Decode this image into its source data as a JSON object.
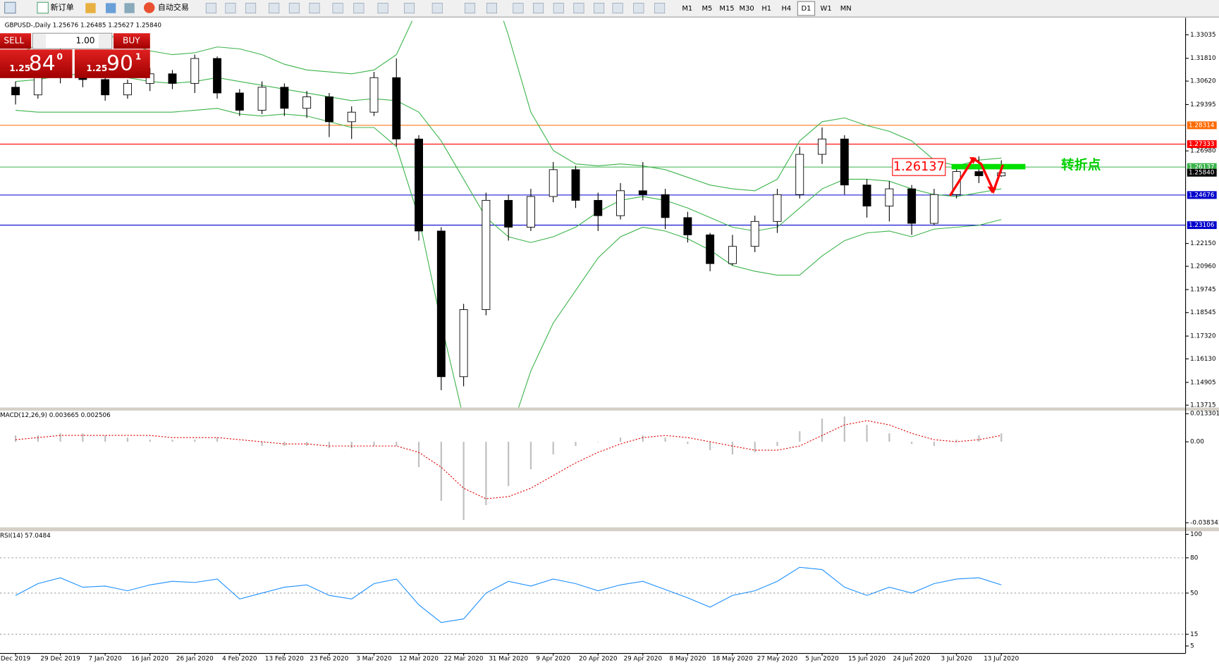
{
  "toolbar": {
    "new_order": "新订单",
    "auto_trading": "自动交易",
    "timeframes": [
      "M1",
      "M5",
      "M15",
      "M30",
      "H1",
      "H4",
      "D1",
      "W1",
      "MN"
    ],
    "active_timeframe": "D1"
  },
  "trade_panel": {
    "sell": "SELL",
    "buy": "BUY",
    "lots": "1.00",
    "bid_prefix": "1.25",
    "bid_big": "84",
    "bid_small": "0",
    "ask_prefix": "1.25",
    "ask_big": "90",
    "ask_small": "1"
  },
  "chart_data": [
    {
      "type": "candlestick",
      "title": "GBPUSD-,Daily 1.25676 1.26485 1.25627 1.25840",
      "categories": [
        "Dec 2019",
        null,
        "29 Dec 2019",
        null,
        "7 Jan 2020",
        null,
        "16 Jan 2020",
        null,
        "26 Jan 2020",
        null,
        "4 Feb 2020",
        null,
        "13 Feb 2020",
        null,
        "23 Feb 2020",
        null,
        "3 Mar 2020",
        null,
        "12 Mar 2020",
        null,
        "22 Mar 2020",
        null,
        "31 Mar 2020",
        null,
        "9 Apr 2020",
        null,
        "20 Apr 2020",
        null,
        "29 Apr 2020",
        null,
        "8 May 2020",
        null,
        "18 May 2020",
        null,
        "27 May 2020",
        null,
        "5 Jun 2020",
        null,
        "15 Jun 2020",
        null,
        "24 Jun 2020",
        null,
        "3 Jul 2020",
        null,
        "13 Jul 2020"
      ],
      "open": [
        1.303,
        1.299,
        1.309,
        1.318,
        1.307,
        1.299,
        1.305,
        1.31,
        1.305,
        1.318,
        1.3,
        1.291,
        1.303,
        1.292,
        1.298,
        1.285,
        1.29,
        1.308,
        1.276,
        1.228,
        1.152,
        1.187,
        1.244,
        1.23,
        1.246,
        1.26,
        1.244,
        1.236,
        1.249,
        1.247,
        1.235,
        1.226,
        1.211,
        1.22,
        1.233,
        1.247,
        1.268,
        1.276,
        1.252,
        1.241,
        1.25,
        1.232,
        1.247,
        1.259,
        1.25676
      ],
      "high": [
        1.306,
        1.312,
        1.323,
        1.32,
        1.309,
        1.307,
        1.313,
        1.312,
        1.32,
        1.319,
        1.302,
        1.306,
        1.305,
        1.301,
        1.3,
        1.293,
        1.311,
        1.318,
        1.278,
        1.23,
        1.19,
        1.248,
        1.247,
        1.25,
        1.264,
        1.262,
        1.248,
        1.253,
        1.264,
        1.25,
        1.238,
        1.227,
        1.226,
        1.236,
        1.25,
        1.272,
        1.282,
        1.278,
        1.255,
        1.254,
        1.252,
        1.25,
        1.262,
        1.267,
        1.26485
      ],
      "low": [
        1.294,
        1.297,
        1.305,
        1.303,
        1.296,
        1.297,
        1.301,
        1.302,
        1.3,
        1.297,
        1.288,
        1.289,
        1.288,
        1.287,
        1.277,
        1.276,
        1.288,
        1.272,
        1.223,
        1.145,
        1.147,
        1.184,
        1.223,
        1.228,
        1.243,
        1.24,
        1.228,
        1.234,
        1.244,
        1.229,
        1.222,
        1.207,
        1.21,
        1.217,
        1.227,
        1.245,
        1.263,
        1.247,
        1.235,
        1.233,
        1.226,
        1.231,
        1.245,
        1.253,
        1.25627
      ],
      "close": [
        1.299,
        1.309,
        1.318,
        1.307,
        1.299,
        1.305,
        1.31,
        1.305,
        1.318,
        1.3,
        1.291,
        1.303,
        1.292,
        1.298,
        1.285,
        1.29,
        1.308,
        1.276,
        1.228,
        1.152,
        1.187,
        1.244,
        1.23,
        1.246,
        1.26,
        1.244,
        1.236,
        1.249,
        1.247,
        1.235,
        1.226,
        1.211,
        1.22,
        1.233,
        1.247,
        1.268,
        1.276,
        1.252,
        1.241,
        1.25,
        1.232,
        1.247,
        1.259,
        1.2568,
        1.2584
      ],
      "up_color": "#ffffff",
      "down_color": "#000000",
      "bands": {
        "color": "#3cb44b",
        "upper": [
          1.32,
          1.325,
          1.328,
          1.33,
          1.331,
          1.326,
          1.322,
          1.32,
          1.321,
          1.324,
          1.323,
          1.32,
          1.315,
          1.312,
          1.311,
          1.31,
          1.312,
          1.32,
          1.345,
          1.37,
          1.38,
          1.365,
          1.33,
          1.29,
          1.27,
          1.263,
          1.262,
          1.263,
          1.262,
          1.26,
          1.256,
          1.252,
          1.25,
          1.249,
          1.255,
          1.275,
          1.285,
          1.287,
          1.283,
          1.28,
          1.275,
          1.265,
          1.262,
          1.265,
          1.266
        ],
        "middle": [
          1.306,
          1.307,
          1.309,
          1.31,
          1.31,
          1.308,
          1.306,
          1.305,
          1.306,
          1.308,
          1.306,
          1.304,
          1.302,
          1.3,
          1.298,
          1.296,
          1.297,
          1.296,
          1.29,
          1.275,
          1.255,
          1.235,
          1.225,
          1.222,
          1.225,
          1.23,
          1.238,
          1.244,
          1.246,
          1.244,
          1.24,
          1.235,
          1.23,
          1.228,
          1.23,
          1.24,
          1.25,
          1.255,
          1.255,
          1.254,
          1.25,
          1.247,
          1.246,
          1.248,
          1.25
        ],
        "lower": [
          1.291,
          1.29,
          1.29,
          1.29,
          1.29,
          1.29,
          1.29,
          1.29,
          1.291,
          1.292,
          1.289,
          1.288,
          1.289,
          1.288,
          1.285,
          1.282,
          1.282,
          1.272,
          1.235,
          1.18,
          1.13,
          1.105,
          1.12,
          1.155,
          1.18,
          1.197,
          1.214,
          1.225,
          1.23,
          1.228,
          1.224,
          1.218,
          1.21,
          1.207,
          1.205,
          1.205,
          1.215,
          1.223,
          1.227,
          1.228,
          1.225,
          1.229,
          1.23,
          1.231,
          1.234
        ]
      },
      "ylim": [
        1.13594,
        1.33761
      ],
      "yticks": [
        1.33035,
        {
          "value": 1.3181,
          "label": "1.31810"
        },
        {
          "value": 1.3062,
          "label": "1.30620"
        },
        1.29395,
        {
          "value": 1.2698,
          "label": "1.26980"
        },
        {
          "value": 1.2215,
          "label": "1.22150"
        },
        {
          "value": 1.2096,
          "label": "1.20960"
        },
        1.19745,
        1.18545,
        {
          "value": 1.1732,
          "label": "1.17320"
        },
        {
          "value": 1.1613,
          "label": "1.16130"
        },
        1.14905,
        1.13715
      ],
      "hlines": [
        {
          "value": 1.28314,
          "color": "#ff6a00"
        },
        {
          "value": 1.27333,
          "color": "#ff0000"
        },
        {
          "value": 1.26137,
          "color": "#3cb44b"
        },
        {
          "value": 1.24676,
          "color": "#0000cc"
        },
        {
          "value": 1.23106,
          "color": "#0000cc"
        }
      ],
      "bid": {
        "value": 1.2584,
        "label": "1.25840"
      },
      "annotations": [
        "1.26137",
        "转折点"
      ]
    },
    {
      "type": "macd",
      "title": "MACD(12,26,9) 0.003665 0.002506",
      "histogram": [
        0.003,
        0.003,
        0.004,
        0.004,
        0.003,
        0.002,
        0.001,
        0.001,
        0.001,
        0.002,
        0.0,
        -0.002,
        -0.002,
        -0.002,
        -0.003,
        -0.003,
        -0.002,
        -0.002,
        -0.012,
        -0.028,
        -0.037,
        -0.03,
        -0.021,
        -0.013,
        -0.006,
        -0.002,
        0.0,
        0.002,
        0.003,
        0.002,
        -0.001,
        -0.004,
        -0.006,
        -0.005,
        -0.002,
        0.005,
        0.011,
        0.012,
        0.008,
        0.004,
        -0.001,
        -0.002,
        0.001,
        0.003,
        0.004
      ],
      "signal": [
        0.001,
        0.002,
        0.003,
        0.003,
        0.003,
        0.003,
        0.003,
        0.002,
        0.002,
        0.002,
        0.001,
        0.0,
        -0.001,
        -0.001,
        -0.002,
        -0.002,
        -0.002,
        -0.002,
        -0.005,
        -0.012,
        -0.022,
        -0.027,
        -0.026,
        -0.022,
        -0.016,
        -0.01,
        -0.005,
        -0.001,
        0.002,
        0.003,
        0.002,
        0.0,
        -0.002,
        -0.004,
        -0.004,
        -0.002,
        0.003,
        0.008,
        0.01,
        0.008,
        0.004,
        0.001,
        0.0,
        0.001,
        0.003
      ],
      "histogram_color": "#c0c0c0",
      "signal_color": "#e00000",
      "ylim": [
        -0.04054,
        0.01477
      ],
      "yticks": [
        0.013301,
        {
          "value": 0,
          "label": "0.00"
        },
        -0.038343
      ]
    },
    {
      "type": "line",
      "title": "RSI(14) 57.0484",
      "values": [
        48,
        58,
        63,
        55,
        56,
        52,
        57,
        60,
        59,
        62,
        45,
        50,
        55,
        57,
        48,
        45,
        58,
        62,
        40,
        25,
        28,
        50,
        60,
        56,
        62,
        58,
        52,
        57,
        60,
        53,
        46,
        38,
        48,
        52,
        60,
        72,
        70,
        55,
        48,
        55,
        50,
        58,
        62,
        63,
        57
      ],
      "color": "#1e90ff",
      "ylim": [
        0,
        100
      ],
      "yticks": [
        100,
        80,
        50,
        15,
        5
      ],
      "levels": [
        80,
        50,
        15
      ]
    }
  ]
}
